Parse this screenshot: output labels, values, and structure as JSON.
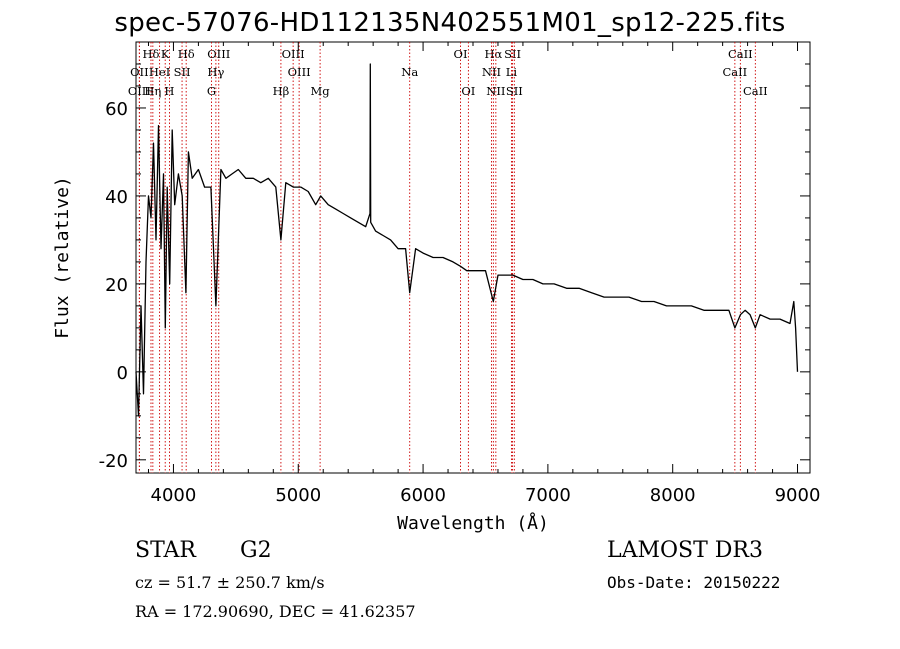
{
  "title": "spec-57076-HD112135N402551M01_sp12-225.fits",
  "chart_data": {
    "type": "line",
    "xlabel": "Wavelength (Å)",
    "ylabel": "Flux (relative)",
    "xlim": [
      3700,
      9100
    ],
    "ylim": [
      -23,
      75
    ],
    "xticks": [
      4000,
      5000,
      6000,
      7000,
      8000,
      9000
    ],
    "yticks": [
      -20,
      0,
      20,
      40,
      60
    ],
    "series": [
      {
        "name": "flux",
        "x": [
          3700,
          3720,
          3740,
          3760,
          3780,
          3800,
          3820,
          3840,
          3860,
          3880,
          3900,
          3920,
          3935,
          3950,
          3970,
          3990,
          4010,
          4040,
          4070,
          4100,
          4120,
          4150,
          4200,
          4250,
          4300,
          4340,
          4380,
          4420,
          4470,
          4520,
          4580,
          4640,
          4700,
          4760,
          4820,
          4861,
          4900,
          4960,
          5020,
          5080,
          5140,
          5180,
          5240,
          5300,
          5360,
          5420,
          5480,
          5540,
          5575,
          5577,
          5580,
          5620,
          5680,
          5740,
          5800,
          5860,
          5893,
          5940,
          6000,
          6080,
          6160,
          6240,
          6300,
          6350,
          6420,
          6500,
          6563,
          6600,
          6660,
          6720,
          6800,
          6880,
          6960,
          7050,
          7150,
          7250,
          7350,
          7450,
          7550,
          7650,
          7750,
          7850,
          7950,
          8050,
          8150,
          8250,
          8350,
          8450,
          8498,
          8542,
          8580,
          8620,
          8662,
          8700,
          8780,
          8860,
          8940,
          8970,
          8985,
          9000
        ],
        "y": [
          0,
          -10,
          15,
          -5,
          25,
          40,
          35,
          52,
          30,
          56,
          28,
          45,
          10,
          42,
          20,
          55,
          38,
          45,
          40,
          18,
          50,
          44,
          46,
          42,
          42,
          15,
          46,
          44,
          45,
          46,
          44,
          44,
          43,
          44,
          42,
          30,
          43,
          42,
          42,
          41,
          38,
          40,
          38,
          37,
          36,
          35,
          34,
          33,
          36,
          70,
          34,
          32,
          31,
          30,
          28,
          28,
          18,
          28,
          27,
          26,
          26,
          25,
          24,
          23,
          23,
          23,
          16,
          22,
          22,
          22,
          21,
          21,
          20,
          20,
          19,
          19,
          18,
          17,
          17,
          17,
          16,
          16,
          15,
          15,
          15,
          14,
          14,
          14,
          10,
          13,
          14,
          13,
          10,
          13,
          12,
          12,
          11,
          16,
          10,
          0
        ]
      }
    ],
    "spectral_lines": [
      {
        "label": "Hδ",
        "wl": 3820,
        "row": 1
      },
      {
        "label": "K",
        "wl": 3934,
        "row": 1
      },
      {
        "label": "Hδ",
        "wl": 4102,
        "row": 1
      },
      {
        "label": "OIII",
        "wl": 4363,
        "row": 1
      },
      {
        "label": "OIII",
        "wl": 4959,
        "row": 1
      },
      {
        "label": "OI",
        "wl": 6300,
        "row": 1
      },
      {
        "label": "Hα",
        "wl": 6563,
        "row": 1
      },
      {
        "label": "SII",
        "wl": 6717,
        "row": 1
      },
      {
        "label": "CaII",
        "wl": 8542,
        "row": 1
      },
      {
        "label": "OII",
        "wl": 3727,
        "row": 2
      },
      {
        "label": "HeI",
        "wl": 3889,
        "row": 2
      },
      {
        "label": "SII",
        "wl": 4069,
        "row": 2
      },
      {
        "label": "Hγ",
        "wl": 4340,
        "row": 2
      },
      {
        "label": "OIII",
        "wl": 5007,
        "row": 2
      },
      {
        "label": "Na",
        "wl": 5893,
        "row": 2
      },
      {
        "label": "NII",
        "wl": 6548,
        "row": 2
      },
      {
        "label": "Li",
        "wl": 6708,
        "row": 2
      },
      {
        "label": "CaII",
        "wl": 8498,
        "row": 2
      },
      {
        "label": "OIII",
        "wl": 3727,
        "row": 3
      },
      {
        "label": "Hη",
        "wl": 3835,
        "row": 3
      },
      {
        "label": "H",
        "wl": 3968,
        "row": 3
      },
      {
        "label": "G",
        "wl": 4305,
        "row": 3
      },
      {
        "label": "Hβ",
        "wl": 4861,
        "row": 3
      },
      {
        "label": "Mg",
        "wl": 5175,
        "row": 3
      },
      {
        "label": "OI",
        "wl": 6363,
        "row": 3
      },
      {
        "label": "NII",
        "wl": 6583,
        "row": 3
      },
      {
        "label": "SII",
        "wl": 6731,
        "row": 3
      },
      {
        "label": "CaII",
        "wl": 8662,
        "row": 3
      }
    ],
    "line_color": "#000000",
    "marker_color": "#cc0000"
  },
  "info": {
    "class_label": "STAR",
    "subclass": "G2",
    "survey": "LAMOST DR3",
    "cz": "cz = 51.7 ± 250.7 km/s",
    "obs_date": "Obs-Date: 20150222",
    "coords": "RA = 172.90690, DEC =  41.62357"
  }
}
